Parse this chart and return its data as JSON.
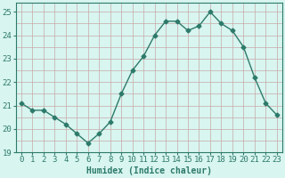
{
  "x": [
    0,
    1,
    2,
    3,
    4,
    5,
    6,
    7,
    8,
    9,
    10,
    11,
    12,
    13,
    14,
    15,
    16,
    17,
    18,
    19,
    20,
    21,
    22,
    23
  ],
  "y": [
    21.1,
    20.8,
    20.8,
    20.5,
    20.2,
    19.8,
    19.4,
    19.8,
    20.3,
    21.5,
    22.5,
    23.1,
    24.0,
    24.6,
    24.6,
    24.2,
    24.4,
    25.0,
    24.5,
    24.2,
    23.5,
    22.2,
    21.1,
    20.6
  ],
  "line_color": "#2d7a6a",
  "marker": "D",
  "markersize": 2.5,
  "linewidth": 1.0,
  "bg_color": "#d8f5f0",
  "grid_color": "#c8a8a8",
  "xlabel": "Humidex (Indice chaleur)",
  "ylim": [
    19.0,
    25.4
  ],
  "yticks": [
    19,
    20,
    21,
    22,
    23,
    24,
    25
  ],
  "xticks": [
    0,
    1,
    2,
    3,
    4,
    5,
    6,
    7,
    8,
    9,
    10,
    11,
    12,
    13,
    14,
    15,
    16,
    17,
    18,
    19,
    20,
    21,
    22,
    23
  ],
  "xlabel_fontsize": 7,
  "tick_fontsize": 6.5,
  "spine_color": "#2d7a6a"
}
